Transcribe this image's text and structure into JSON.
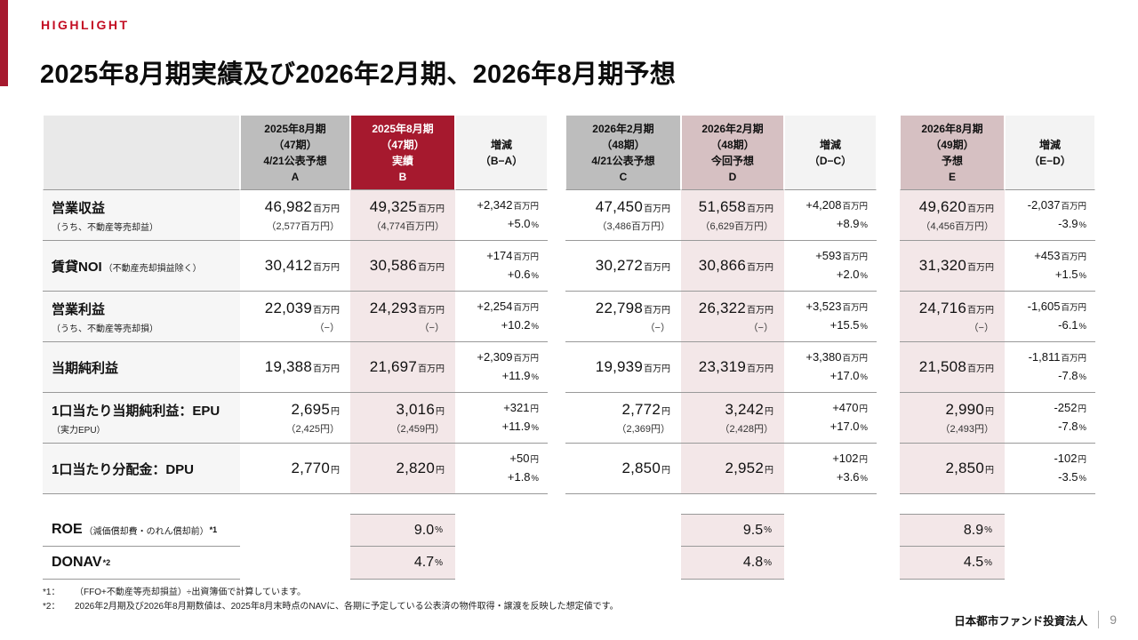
{
  "slide": {
    "eyebrow": "HIGHLIGHT",
    "title": "2025年8月期実績及び2026年2月期、2026年8月期予想",
    "footnotes": [
      {
        "label": "*1：",
        "text": "（FFO+不動産等売却損益）÷出資簿価で計算しています。"
      },
      {
        "label": "*2：",
        "text": "2026年2月期及び2026年8月期数値は、2025年8月末時点のNAVに、各期に予定している公表済の物件取得・譲渡を反映した想定値です。"
      }
    ],
    "footer": {
      "company": "日本都市ファンド投資法人",
      "page_number": "9"
    }
  },
  "colors": {
    "brand_red": "#A6192E",
    "highlight_red": "#C30D23",
    "header_gray": "#BDBDBD",
    "header_pink": "#D6C0C2",
    "cell_pink": "#F3E7E8",
    "label_gray": "#F6F6F6",
    "corner_gray": "#E9E9E9",
    "diff_header_gray": "#F3F3F3",
    "line_gray": "#999999",
    "page_number_gray": "#8C8C8C"
  },
  "table": {
    "headers": {
      "a": "2025年8月期\n（47期）\n4/21公表予想\nA",
      "b": "2025年8月期\n（47期）\n実績\nB",
      "diff_ba": "増減\n（B−A）",
      "c": "2026年2月期\n（48期）\n4/21公表予想\nC",
      "d": "2026年2月期\n（48期）\n今回予想\nD",
      "diff_dc": "増減\n（D−C）",
      "e": "2026年8月期\n（49期）\n予想\nE",
      "diff_ed": "増減\n（E−D）"
    },
    "rows": [
      {
        "label": "営業収益",
        "note_below": "（うち、不動産等売却益）",
        "a": {
          "v": "46,982",
          "u": "百万円",
          "sub": "（2,577百万円）"
        },
        "b": {
          "v": "49,325",
          "u": "百万円",
          "sub": "（4,774百万円）"
        },
        "diff_ba": {
          "v1": "+2,342",
          "u1": "百万円",
          "v2": "+5.0",
          "u2": "%"
        },
        "c": {
          "v": "47,450",
          "u": "百万円",
          "sub": "（3,486百万円）"
        },
        "d": {
          "v": "51,658",
          "u": "百万円",
          "sub": "（6,629百万円）"
        },
        "diff_dc": {
          "v1": "+4,208",
          "u1": "百万円",
          "v2": "+8.9",
          "u2": "%"
        },
        "e": {
          "v": "49,620",
          "u": "百万円",
          "sub": "（4,456百万円）"
        },
        "diff_ed": {
          "v1": "-2,037",
          "u1": "百万円",
          "v2": "-3.9",
          "u2": "%"
        }
      },
      {
        "label": "賃貸NOI",
        "note_inline": "（不動産売却損益除く）",
        "a": {
          "v": "30,412",
          "u": "百万円"
        },
        "b": {
          "v": "30,586",
          "u": "百万円"
        },
        "diff_ba": {
          "v1": "+174",
          "u1": "百万円",
          "v2": "+0.6",
          "u2": "%"
        },
        "c": {
          "v": "30,272",
          "u": "百万円"
        },
        "d": {
          "v": "30,866",
          "u": "百万円"
        },
        "diff_dc": {
          "v1": "+593",
          "u1": "百万円",
          "v2": "+2.0",
          "u2": "%"
        },
        "e": {
          "v": "31,320",
          "u": "百万円"
        },
        "diff_ed": {
          "v1": "+453",
          "u1": "百万円",
          "v2": "+1.5",
          "u2": "%"
        }
      },
      {
        "label": "営業利益",
        "note_below": "（うち、不動産等売却損）",
        "a": {
          "v": "22,039",
          "u": "百万円",
          "sub": "（−）"
        },
        "b": {
          "v": "24,293",
          "u": "百万円",
          "sub": "（−）"
        },
        "diff_ba": {
          "v1": "+2,254",
          "u1": "百万円",
          "v2": "+10.2",
          "u2": "%"
        },
        "c": {
          "v": "22,798",
          "u": "百万円",
          "sub": "（−）"
        },
        "d": {
          "v": "26,322",
          "u": "百万円",
          "sub": "（−）"
        },
        "diff_dc": {
          "v1": "+3,523",
          "u1": "百万円",
          "v2": "+15.5",
          "u2": "%"
        },
        "e": {
          "v": "24,716",
          "u": "百万円",
          "sub": "（−）"
        },
        "diff_ed": {
          "v1": "-1,605",
          "u1": "百万円",
          "v2": "-6.1",
          "u2": "%"
        }
      },
      {
        "label": "当期純利益",
        "a": {
          "v": "19,388",
          "u": "百万円"
        },
        "b": {
          "v": "21,697",
          "u": "百万円"
        },
        "diff_ba": {
          "v1": "+2,309",
          "u1": "百万円",
          "v2": "+11.9",
          "u2": "%"
        },
        "c": {
          "v": "19,939",
          "u": "百万円"
        },
        "d": {
          "v": "23,319",
          "u": "百万円"
        },
        "diff_dc": {
          "v1": "+3,380",
          "u1": "百万円",
          "v2": "+17.0",
          "u2": "%"
        },
        "e": {
          "v": "21,508",
          "u": "百万円"
        },
        "diff_ed": {
          "v1": "-1,811",
          "u1": "百万円",
          "v2": "-7.8",
          "u2": "%"
        }
      },
      {
        "label": "1口当たり当期純利益：EPU",
        "note_below": "（実力EPU）",
        "a": {
          "v": "2,695",
          "u": "円",
          "sub": "（2,425円）"
        },
        "b": {
          "v": "3,016",
          "u": "円",
          "sub": "（2,459円）"
        },
        "diff_ba": {
          "v1": "+321",
          "u1": "円",
          "v2": "+11.9",
          "u2": "%"
        },
        "c": {
          "v": "2,772",
          "u": "円",
          "sub": "（2,369円）"
        },
        "d": {
          "v": "3,242",
          "u": "円",
          "sub": "（2,428円）"
        },
        "diff_dc": {
          "v1": "+470",
          "u1": "円",
          "v2": "+17.0",
          "u2": "%"
        },
        "e": {
          "v": "2,990",
          "u": "円",
          "sub": "（2,493円）"
        },
        "diff_ed": {
          "v1": "-252",
          "u1": "円",
          "v2": "-7.8",
          "u2": "%"
        }
      },
      {
        "label": "1口当たり分配金：DPU",
        "a": {
          "v": "2,770",
          "u": "円"
        },
        "b": {
          "v": "2,820",
          "u": "円"
        },
        "diff_ba": {
          "v1": "+50",
          "u1": "円",
          "v2": "+1.8",
          "u2": "%"
        },
        "c": {
          "v": "2,850",
          "u": "円"
        },
        "d": {
          "v": "2,952",
          "u": "円"
        },
        "diff_dc": {
          "v1": "+102",
          "u1": "円",
          "v2": "+3.6",
          "u2": "%"
        },
        "e": {
          "v": "2,850",
          "u": "円"
        },
        "diff_ed": {
          "v1": "-102",
          "u1": "円",
          "v2": "-3.5",
          "u2": "%"
        }
      }
    ],
    "ratio_rows": [
      {
        "label": "ROE",
        "note": "（減価償却費・のれん償却前）",
        "sup": "*1",
        "b": {
          "v": "9.0",
          "u": "%"
        },
        "d": {
          "v": "9.5",
          "u": "%"
        },
        "e": {
          "v": "8.9",
          "u": "%"
        }
      },
      {
        "label": "DONAV",
        "note": "",
        "sup": "*2",
        "b": {
          "v": "4.7",
          "u": "%"
        },
        "d": {
          "v": "4.8",
          "u": "%"
        },
        "e": {
          "v": "4.5",
          "u": "%"
        }
      }
    ]
  }
}
